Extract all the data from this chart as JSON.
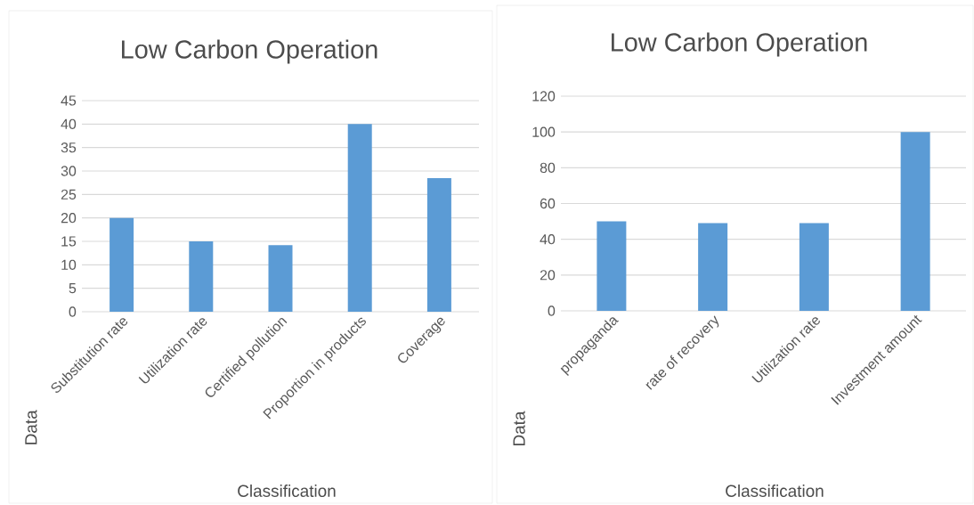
{
  "chart_data": [
    {
      "type": "bar",
      "title": "Low Carbon Operation",
      "xlabel": "Classification",
      "ylabel": "Data",
      "categories": [
        "Substitution rate",
        "Utilization rate",
        "Certified pollution",
        "Proportion in products",
        "Coverage"
      ],
      "values": [
        20,
        15,
        14.2,
        40,
        28.5
      ],
      "color": "#5b9bd5",
      "ylim": [
        0,
        45
      ],
      "yticks": [
        0,
        5,
        10,
        15,
        20,
        25,
        30,
        35,
        40,
        45
      ],
      "grid": "y"
    },
    {
      "type": "bar",
      "title": "Low Carbon Operation",
      "xlabel": "Classification",
      "ylabel": "Data",
      "categories": [
        "propaganda",
        "rate of recovery",
        "Utilization rate",
        "Investment amount"
      ],
      "values": [
        50,
        49,
        49,
        100
      ],
      "color": "#5b9bd5",
      "ylim": [
        0,
        120
      ],
      "yticks": [
        0,
        20,
        40,
        60,
        80,
        100,
        120
      ],
      "grid": "y"
    }
  ]
}
